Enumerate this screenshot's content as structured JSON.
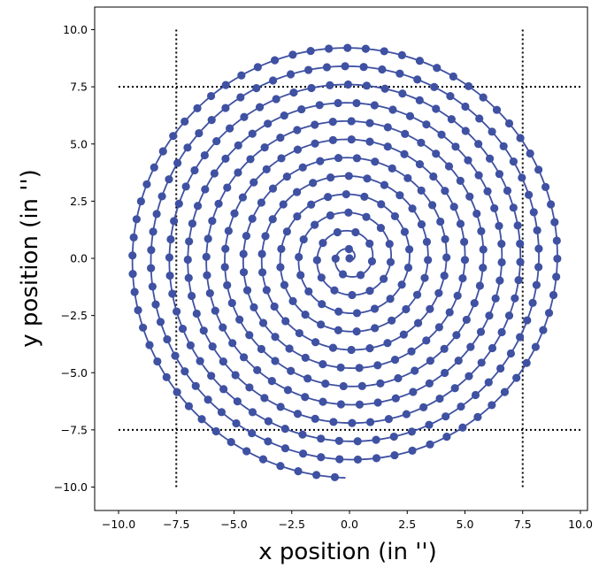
{
  "chart_data": {
    "type": "scatter",
    "title": "",
    "xlabel": "x position (in '')",
    "ylabel": "y position (in '')",
    "xlim": [
      -10.9,
      10.9
    ],
    "ylim": [
      -10.9,
      10.9
    ],
    "xticks": [
      -10.0,
      -7.5,
      -5.0,
      -2.5,
      0.0,
      2.5,
      5.0,
      7.5,
      10.0
    ],
    "yticks": [
      -10.0,
      -7.5,
      -5.0,
      -2.5,
      0.0,
      2.5,
      5.0,
      7.5,
      10.0
    ],
    "xtick_labels": [
      "−10.0",
      "−7.5",
      "−5.0",
      "−2.5",
      "0.0",
      "2.5",
      "5.0",
      "7.5",
      "10.0"
    ],
    "ytick_labels": [
      "−10.0",
      "−7.5",
      "−5.0",
      "−2.5",
      "0.0",
      "2.5",
      "5.0",
      "7.5",
      "10.0"
    ],
    "grid": false,
    "colors": {
      "series": "#3f51a2",
      "guides": "#000000"
    },
    "series": [
      {
        "style": "archimedean spiral, line with circular markers",
        "turns": 12,
        "radial_step_per_turn": 0.8,
        "point_spacing_arc": 0.8,
        "max_radius": 9.6,
        "center": [
          0.0,
          0.0
        ],
        "x_formula": "x = 0.8 * (theta / 2pi) * sin(theta)",
        "y_formula": "y = -0.8 * (theta / 2pi) * cos(theta)"
      }
    ],
    "reference_lines": [
      {
        "orientation": "vertical",
        "x": -7.5,
        "y_range": [
          -10.0,
          10.0
        ],
        "style": "dotted"
      },
      {
        "orientation": "vertical",
        "x": 7.5,
        "y_range": [
          -10.0,
          10.0
        ],
        "style": "dotted"
      },
      {
        "orientation": "horizontal",
        "y": 7.5,
        "x_range": [
          -10.0,
          10.0
        ],
        "style": "dotted"
      },
      {
        "orientation": "horizontal",
        "y": -7.5,
        "x_range": [
          -10.0,
          10.0
        ],
        "style": "dotted"
      }
    ]
  }
}
